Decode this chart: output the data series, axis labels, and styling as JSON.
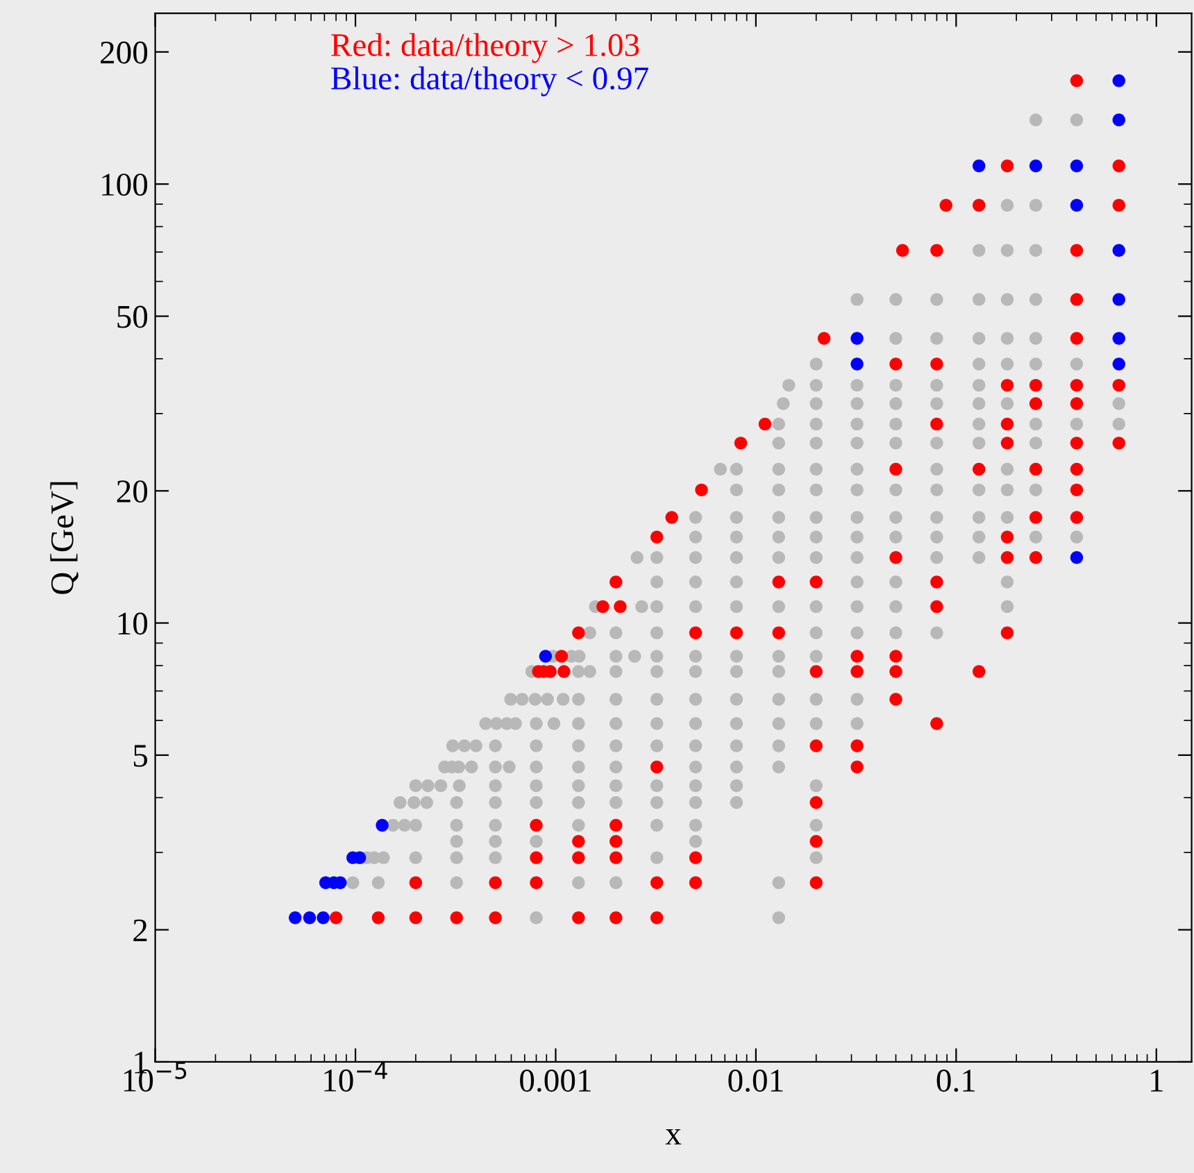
{
  "chart_data": {
    "type": "scatter",
    "xlabel": "x",
    "ylabel": "Q [GeV]",
    "log": "xy",
    "grid": false,
    "legend": "top left",
    "marker": "circle",
    "xlim": [
      1e-05,
      1.5
    ],
    "ylim": [
      1,
      245
    ],
    "xticks": [
      {
        "value": 1e-05,
        "label": "10$^{−5}$"
      },
      {
        "value": 0.0001,
        "label": "10$^{−4}$"
      },
      {
        "value": 0.001,
        "label": "0.001"
      },
      {
        "value": 0.01,
        "label": "0.01"
      },
      {
        "value": 0.1,
        "label": "0.1"
      },
      1
    ],
    "yticks": [
      1,
      2,
      5,
      10,
      20,
      50,
      100,
      200
    ],
    "series": [
      {
        "color": "#b8b8b8",
        "x": [
          0.0008,
          0.013,
          9.7e-05,
          0.00013,
          0.00032,
          0.0013,
          0.002,
          0.013,
          0.000114,
          0.000124,
          0.000138,
          0.0002,
          0.00032,
          0.0005,
          0.0032,
          0.02,
          0.00032,
          0.0005,
          0.0008,
          0.005,
          0.000154,
          0.000176,
          0.0002,
          0.00032,
          0.0005,
          0.0013,
          0.0032,
          0.005,
          0.02,
          0.000167,
          0.000196,
          0.000227,
          0.00032,
          0.0005,
          0.0008,
          0.0013,
          0.002,
          0.0032,
          0.005,
          0.008,
          0.0002,
          0.00023,
          0.000267,
          0.00033,
          0.0005,
          0.0008,
          0.0013,
          0.002,
          0.0032,
          0.005,
          0.008,
          0.02,
          0.000279,
          0.000303,
          0.000328,
          0.00038,
          0.0005,
          0.000586,
          0.0008,
          0.0013,
          0.002,
          0.005,
          0.008,
          0.013,
          0.000306,
          0.00035,
          0.0004,
          0.0005,
          0.0008,
          0.0013,
          0.002,
          0.0032,
          0.005,
          0.008,
          0.013,
          0.000447,
          0.000506,
          0.00057,
          0.00063,
          0.0008,
          0.00098,
          0.0013,
          0.002,
          0.0032,
          0.005,
          0.008,
          0.013,
          0.02,
          0.032,
          0.000596,
          0.00068,
          0.00079,
          0.00091,
          0.00109,
          0.0013,
          0.002,
          0.0032,
          0.005,
          0.008,
          0.013,
          0.02,
          0.032,
          0.00076,
          0.0013,
          0.00148,
          0.002,
          0.0032,
          0.005,
          0.008,
          0.013,
          0.00097,
          0.0012,
          0.00131,
          0.002,
          0.00248,
          0.0032,
          0.005,
          0.008,
          0.013,
          0.02,
          0.00148,
          0.002,
          0.0032,
          0.02,
          0.032,
          0.05,
          0.08,
          0.00158,
          0.00269,
          0.0032,
          0.005,
          0.008,
          0.013,
          0.02,
          0.032,
          0.05,
          0.18,
          0.0032,
          0.005,
          0.008,
          0.032,
          0.05,
          0.18,
          0.00255,
          0.0032,
          0.005,
          0.008,
          0.013,
          0.02,
          0.032,
          0.08,
          0.13,
          0.005,
          0.008,
          0.013,
          0.02,
          0.032,
          0.05,
          0.08,
          0.13,
          0.25,
          0.4,
          0.005,
          0.008,
          0.013,
          0.02,
          0.032,
          0.05,
          0.08,
          0.13,
          0.18,
          0.008,
          0.013,
          0.02,
          0.032,
          0.05,
          0.08,
          0.13,
          0.18,
          0.25,
          0.00665,
          0.008,
          0.013,
          0.02,
          0.032,
          0.08,
          0.18,
          0.013,
          0.02,
          0.032,
          0.05,
          0.08,
          0.13,
          0.25,
          0.013,
          0.02,
          0.032,
          0.05,
          0.13,
          0.25,
          0.4,
          0.65,
          0.0137,
          0.02,
          0.032,
          0.05,
          0.08,
          0.13,
          0.18,
          0.65,
          0.0146,
          0.02,
          0.032,
          0.05,
          0.08,
          0.13,
          0.02,
          0.13,
          0.18,
          0.25,
          0.4,
          0.05,
          0.08,
          0.13,
          0.18,
          0.25,
          0.032,
          0.05,
          0.08,
          0.13,
          0.18,
          0.25,
          0.13,
          0.18,
          0.25,
          0.18,
          0.25,
          0.25,
          0.4
        ],
        "values": [
          2.13,
          2.13,
          2.56,
          2.56,
          2.56,
          2.56,
          2.56,
          2.56,
          2.92,
          2.92,
          2.92,
          2.92,
          2.92,
          2.92,
          2.92,
          2.92,
          3.18,
          3.18,
          3.18,
          3.18,
          3.46,
          3.46,
          3.46,
          3.46,
          3.46,
          3.46,
          3.46,
          3.46,
          3.46,
          3.9,
          3.9,
          3.9,
          3.9,
          3.9,
          3.9,
          3.9,
          3.9,
          3.9,
          3.9,
          3.9,
          4.26,
          4.26,
          4.26,
          4.26,
          4.26,
          4.26,
          4.26,
          4.26,
          4.26,
          4.26,
          4.26,
          4.26,
          4.7,
          4.7,
          4.7,
          4.7,
          4.7,
          4.7,
          4.7,
          4.7,
          4.7,
          4.7,
          4.7,
          4.7,
          5.25,
          5.25,
          5.25,
          5.25,
          5.25,
          5.25,
          5.25,
          5.25,
          5.25,
          5.25,
          5.25,
          5.9,
          5.9,
          5.9,
          5.9,
          5.9,
          5.9,
          5.9,
          5.9,
          5.9,
          5.9,
          5.9,
          5.9,
          5.9,
          5.9,
          6.7,
          6.7,
          6.7,
          6.7,
          6.7,
          6.7,
          6.7,
          6.7,
          6.7,
          6.7,
          6.7,
          6.7,
          6.7,
          7.75,
          7.75,
          7.75,
          7.75,
          7.75,
          7.75,
          7.75,
          7.75,
          8.4,
          8.4,
          8.4,
          8.4,
          8.4,
          8.4,
          8.4,
          8.4,
          8.4,
          8.4,
          9.5,
          9.5,
          9.5,
          9.5,
          9.5,
          9.5,
          9.5,
          10.9,
          10.9,
          10.9,
          10.9,
          10.9,
          10.9,
          10.9,
          10.9,
          10.9,
          10.9,
          12.4,
          12.4,
          12.4,
          12.4,
          12.4,
          12.4,
          14.1,
          14.1,
          14.1,
          14.1,
          14.1,
          14.1,
          14.1,
          14.1,
          14.1,
          15.7,
          15.7,
          15.7,
          15.7,
          15.7,
          15.7,
          15.7,
          15.7,
          15.7,
          15.7,
          17.4,
          17.4,
          17.4,
          17.4,
          17.4,
          17.4,
          17.4,
          17.4,
          17.4,
          20.1,
          20.1,
          20.1,
          20.1,
          20.1,
          20.1,
          20.1,
          20.1,
          20.1,
          22.4,
          22.4,
          22.4,
          22.4,
          22.4,
          22.4,
          22.4,
          25.7,
          25.7,
          25.7,
          25.7,
          25.7,
          25.7,
          25.7,
          28.4,
          28.4,
          28.4,
          28.4,
          28.4,
          28.4,
          28.4,
          28.4,
          31.6,
          31.6,
          31.6,
          31.6,
          31.6,
          31.6,
          31.6,
          31.6,
          34.8,
          34.8,
          34.8,
          34.8,
          34.8,
          34.8,
          38.9,
          38.9,
          38.9,
          38.9,
          38.9,
          44.5,
          44.5,
          44.5,
          44.5,
          44.5,
          54.6,
          54.6,
          54.6,
          54.6,
          54.6,
          54.6,
          70.6,
          70.6,
          70.6,
          89.5,
          89.5,
          140,
          140
        ]
      },
      {
        "name": "Red: data/theory > 1.03",
        "color": "#ff0000",
        "x": [
          8e-05,
          0.00013,
          0.0002,
          0.00032,
          0.0005,
          0.0013,
          0.002,
          0.0032,
          0.0002,
          0.0005,
          0.0008,
          0.0032,
          0.005,
          0.02,
          0.0008,
          0.0013,
          0.002,
          0.005,
          0.0013,
          0.002,
          0.02,
          0.0008,
          0.002,
          0.02,
          0.0032,
          0.032,
          0.02,
          0.032,
          0.08,
          0.05,
          0.00082,
          0.00087,
          0.00094,
          0.0011,
          0.02,
          0.032,
          0.05,
          0.13,
          0.00107,
          0.032,
          0.05,
          0.0013,
          0.005,
          0.008,
          0.013,
          0.18,
          0.00172,
          0.0021,
          0.08,
          0.002,
          0.013,
          0.02,
          0.08,
          0.05,
          0.18,
          0.25,
          0.0032,
          0.18,
          0.0038,
          0.25,
          0.4,
          0.00535,
          0.4,
          0.05,
          0.13,
          0.25,
          0.4,
          0.0084,
          0.18,
          0.4,
          0.65,
          0.0111,
          0.08,
          0.18,
          0.25,
          0.4,
          0.18,
          0.25,
          0.4,
          0.65,
          0.05,
          0.08,
          0.0219,
          0.4,
          0.4,
          0.054,
          0.08,
          0.4,
          0.089,
          0.13,
          0.65,
          0.18,
          0.65,
          0.4
        ],
        "values": [
          2.13,
          2.13,
          2.13,
          2.13,
          2.13,
          2.13,
          2.13,
          2.13,
          2.56,
          2.56,
          2.56,
          2.56,
          2.56,
          2.56,
          2.92,
          2.92,
          2.92,
          2.92,
          3.18,
          3.18,
          3.18,
          3.46,
          3.46,
          3.9,
          4.7,
          4.7,
          5.25,
          5.25,
          5.9,
          6.7,
          7.75,
          7.75,
          7.75,
          7.75,
          7.75,
          7.75,
          7.75,
          7.75,
          8.4,
          8.4,
          8.4,
          9.5,
          9.5,
          9.5,
          9.5,
          9.5,
          10.9,
          10.9,
          10.9,
          12.4,
          12.4,
          12.4,
          12.4,
          14.1,
          14.1,
          14.1,
          15.7,
          15.7,
          17.4,
          17.4,
          17.4,
          20.1,
          20.1,
          22.4,
          22.4,
          22.4,
          22.4,
          25.7,
          25.7,
          25.7,
          25.7,
          28.4,
          28.4,
          28.4,
          31.6,
          31.6,
          34.8,
          34.8,
          34.8,
          34.8,
          38.9,
          38.9,
          44.5,
          44.5,
          54.6,
          70.6,
          70.6,
          70.6,
          89.5,
          89.5,
          89.5,
          110,
          110,
          172
        ]
      },
      {
        "name": "Blue: data/theory < 0.97",
        "color": "#0000ff",
        "x": [
          5e-05,
          5.9e-05,
          6.9e-05,
          7.1e-05,
          7.8e-05,
          8.4e-05,
          9.7e-05,
          0.000105,
          0.000136,
          0.00089,
          0.4,
          0.032,
          0.65,
          0.032,
          0.65,
          0.65,
          0.65,
          0.4,
          0.13,
          0.25,
          0.4,
          0.65,
          0.65
        ],
        "values": [
          2.13,
          2.13,
          2.13,
          2.56,
          2.56,
          2.56,
          2.92,
          2.92,
          3.46,
          8.4,
          14.1,
          38.9,
          38.9,
          44.5,
          44.5,
          54.6,
          70.6,
          89.5,
          110,
          110,
          110,
          140,
          172
        ]
      }
    ]
  }
}
